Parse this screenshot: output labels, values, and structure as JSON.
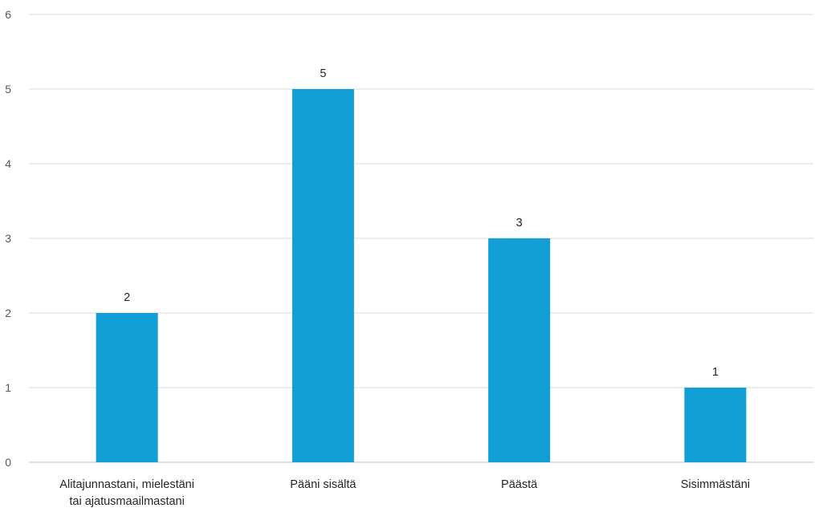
{
  "chart_data": {
    "type": "bar",
    "categories": [
      [
        "Alitajunnastani, mielestäni",
        "tai ajatusmaailmastani"
      ],
      [
        "Pääni sisältä"
      ],
      [
        "Päästä"
      ],
      [
        "Sisimmästäni"
      ]
    ],
    "values": [
      2,
      5,
      3,
      1
    ],
    "ylim": [
      0,
      6
    ],
    "yticks": [
      0,
      1,
      2,
      3,
      4,
      5,
      6
    ],
    "grid": true,
    "legend": "none",
    "colors": {
      "bar": "#119fd6"
    }
  }
}
